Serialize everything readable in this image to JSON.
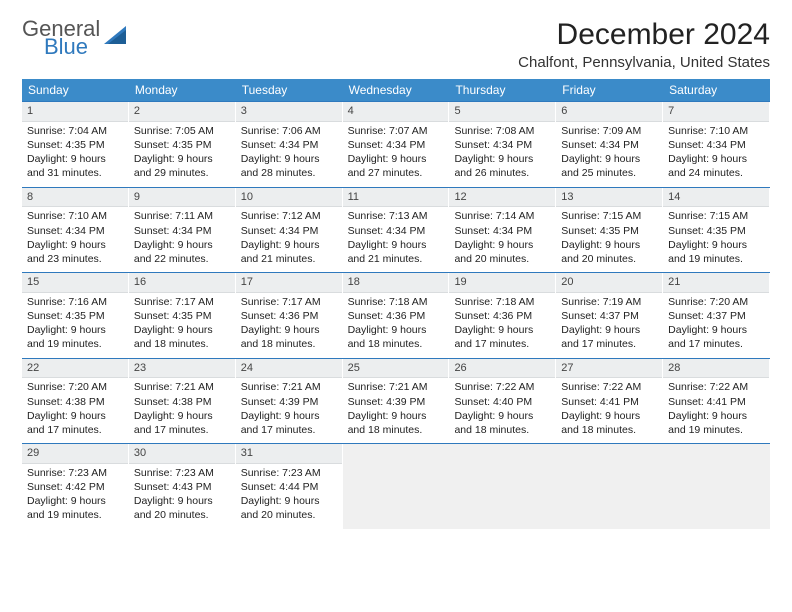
{
  "logo": {
    "word1": "General",
    "word2": "Blue",
    "triangle_color": "#2f79bd"
  },
  "title": "December 2024",
  "location": "Chalfont, Pennsylvania, United States",
  "colors": {
    "header_bg": "#3b8bc9",
    "header_text": "#ffffff",
    "row_border": "#2f79bd",
    "daybar_bg": "#eceeef",
    "empty_bg": "#f0f0f0"
  },
  "day_headers": [
    "Sunday",
    "Monday",
    "Tuesday",
    "Wednesday",
    "Thursday",
    "Friday",
    "Saturday"
  ],
  "weeks": [
    [
      {
        "n": "1",
        "sunrise": "7:04 AM",
        "sunset": "4:35 PM",
        "dlh": "9",
        "dlm": "31"
      },
      {
        "n": "2",
        "sunrise": "7:05 AM",
        "sunset": "4:35 PM",
        "dlh": "9",
        "dlm": "29"
      },
      {
        "n": "3",
        "sunrise": "7:06 AM",
        "sunset": "4:34 PM",
        "dlh": "9",
        "dlm": "28"
      },
      {
        "n": "4",
        "sunrise": "7:07 AM",
        "sunset": "4:34 PM",
        "dlh": "9",
        "dlm": "27"
      },
      {
        "n": "5",
        "sunrise": "7:08 AM",
        "sunset": "4:34 PM",
        "dlh": "9",
        "dlm": "26"
      },
      {
        "n": "6",
        "sunrise": "7:09 AM",
        "sunset": "4:34 PM",
        "dlh": "9",
        "dlm": "25"
      },
      {
        "n": "7",
        "sunrise": "7:10 AM",
        "sunset": "4:34 PM",
        "dlh": "9",
        "dlm": "24"
      }
    ],
    [
      {
        "n": "8",
        "sunrise": "7:10 AM",
        "sunset": "4:34 PM",
        "dlh": "9",
        "dlm": "23"
      },
      {
        "n": "9",
        "sunrise": "7:11 AM",
        "sunset": "4:34 PM",
        "dlh": "9",
        "dlm": "22"
      },
      {
        "n": "10",
        "sunrise": "7:12 AM",
        "sunset": "4:34 PM",
        "dlh": "9",
        "dlm": "21"
      },
      {
        "n": "11",
        "sunrise": "7:13 AM",
        "sunset": "4:34 PM",
        "dlh": "9",
        "dlm": "21"
      },
      {
        "n": "12",
        "sunrise": "7:14 AM",
        "sunset": "4:34 PM",
        "dlh": "9",
        "dlm": "20"
      },
      {
        "n": "13",
        "sunrise": "7:15 AM",
        "sunset": "4:35 PM",
        "dlh": "9",
        "dlm": "20"
      },
      {
        "n": "14",
        "sunrise": "7:15 AM",
        "sunset": "4:35 PM",
        "dlh": "9",
        "dlm": "19"
      }
    ],
    [
      {
        "n": "15",
        "sunrise": "7:16 AM",
        "sunset": "4:35 PM",
        "dlh": "9",
        "dlm": "19"
      },
      {
        "n": "16",
        "sunrise": "7:17 AM",
        "sunset": "4:35 PM",
        "dlh": "9",
        "dlm": "18"
      },
      {
        "n": "17",
        "sunrise": "7:17 AM",
        "sunset": "4:36 PM",
        "dlh": "9",
        "dlm": "18"
      },
      {
        "n": "18",
        "sunrise": "7:18 AM",
        "sunset": "4:36 PM",
        "dlh": "9",
        "dlm": "18"
      },
      {
        "n": "19",
        "sunrise": "7:18 AM",
        "sunset": "4:36 PM",
        "dlh": "9",
        "dlm": "17"
      },
      {
        "n": "20",
        "sunrise": "7:19 AM",
        "sunset": "4:37 PM",
        "dlh": "9",
        "dlm": "17"
      },
      {
        "n": "21",
        "sunrise": "7:20 AM",
        "sunset": "4:37 PM",
        "dlh": "9",
        "dlm": "17"
      }
    ],
    [
      {
        "n": "22",
        "sunrise": "7:20 AM",
        "sunset": "4:38 PM",
        "dlh": "9",
        "dlm": "17"
      },
      {
        "n": "23",
        "sunrise": "7:21 AM",
        "sunset": "4:38 PM",
        "dlh": "9",
        "dlm": "17"
      },
      {
        "n": "24",
        "sunrise": "7:21 AM",
        "sunset": "4:39 PM",
        "dlh": "9",
        "dlm": "17"
      },
      {
        "n": "25",
        "sunrise": "7:21 AM",
        "sunset": "4:39 PM",
        "dlh": "9",
        "dlm": "18"
      },
      {
        "n": "26",
        "sunrise": "7:22 AM",
        "sunset": "4:40 PM",
        "dlh": "9",
        "dlm": "18"
      },
      {
        "n": "27",
        "sunrise": "7:22 AM",
        "sunset": "4:41 PM",
        "dlh": "9",
        "dlm": "18"
      },
      {
        "n": "28",
        "sunrise": "7:22 AM",
        "sunset": "4:41 PM",
        "dlh": "9",
        "dlm": "19"
      }
    ],
    [
      {
        "n": "29",
        "sunrise": "7:23 AM",
        "sunset": "4:42 PM",
        "dlh": "9",
        "dlm": "19"
      },
      {
        "n": "30",
        "sunrise": "7:23 AM",
        "sunset": "4:43 PM",
        "dlh": "9",
        "dlm": "20"
      },
      {
        "n": "31",
        "sunrise": "7:23 AM",
        "sunset": "4:44 PM",
        "dlh": "9",
        "dlm": "20"
      },
      null,
      null,
      null,
      null
    ]
  ],
  "labels": {
    "sunrise": "Sunrise:",
    "sunset": "Sunset:",
    "daylight": "Daylight:",
    "hours": "hours",
    "and": "and",
    "minutes": "minutes."
  }
}
